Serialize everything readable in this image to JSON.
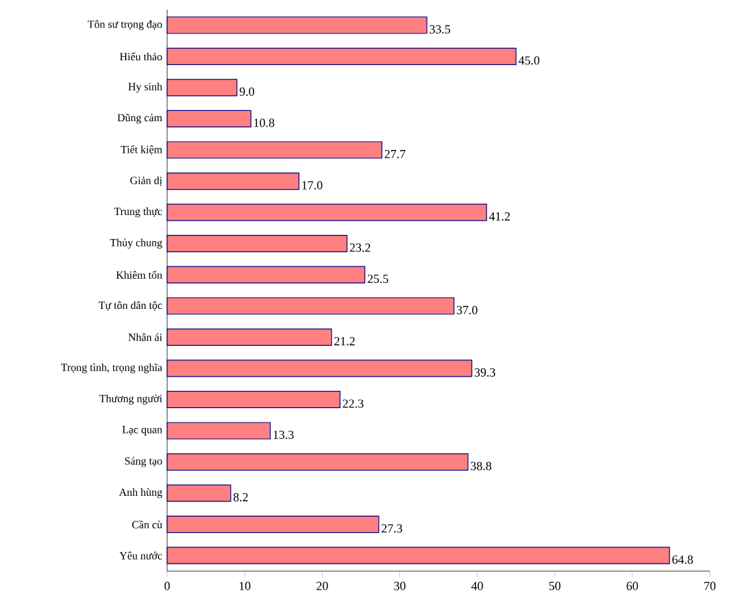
{
  "chart_data": {
    "type": "bar",
    "orientation": "horizontal",
    "categories": [
      "Tôn sư trọng đạo",
      "Hiếu thảo",
      "Hy sinh",
      "Dũng cảm",
      "Tiết kiệm",
      "Giản dị",
      "Trung thực",
      "Thủy chung",
      "Khiêm tốn",
      "Tự tôn dân tộc",
      "Nhân ái",
      "Trọng tình, trọng nghĩa",
      "Thương người",
      "Lạc quan",
      "Sáng tạo",
      "Anh hùng",
      "Cần cù",
      "Yêu nước"
    ],
    "values": [
      33.5,
      45.0,
      9.0,
      10.8,
      27.7,
      17.0,
      41.2,
      23.2,
      25.5,
      37.0,
      21.2,
      39.3,
      22.3,
      13.3,
      38.8,
      8.2,
      27.3,
      64.8
    ],
    "value_labels": [
      "33.5",
      "45.0",
      "9.0",
      "10.8",
      "27.7",
      "17.0",
      "41.2",
      "23.2",
      "25.5",
      "37.0",
      "21.2",
      "39.3",
      "22.3",
      "13.3",
      "38.8",
      "8.2",
      "27.3",
      "64.8"
    ],
    "color": "#ff8080",
    "xlim": [
      0,
      70
    ],
    "xticks": [
      0,
      10,
      20,
      30,
      40,
      50,
      60,
      70
    ]
  }
}
